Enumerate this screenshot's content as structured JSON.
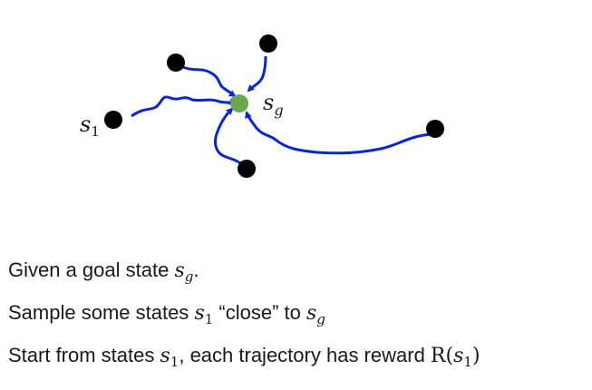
{
  "diagram": {
    "goal_label": {
      "base": "s",
      "sub": "g"
    },
    "start_label": {
      "base": "s",
      "sub": "1"
    },
    "colors": {
      "state_node": "#000000",
      "goal_node": "#6aa84f",
      "trajectory": "#0b24d8"
    }
  },
  "text": {
    "line1": {
      "prefix": "Given a goal state ",
      "var_base": "s",
      "var_sub": "g",
      "suffix": "."
    },
    "line2": {
      "prefix": "Sample some states ",
      "var1_base": "s",
      "var1_sub": "1",
      "middle": " “close” to ",
      "var2_base": "s",
      "var2_sub": "g"
    },
    "line3": {
      "prefix": "Start from states ",
      "var1_base": "s",
      "var1_sub": "1",
      "middle": ", each trajectory has reward ",
      "func": "R",
      "open": "(",
      "var2_base": "s",
      "var2_sub": "1",
      "close": ")"
    }
  }
}
